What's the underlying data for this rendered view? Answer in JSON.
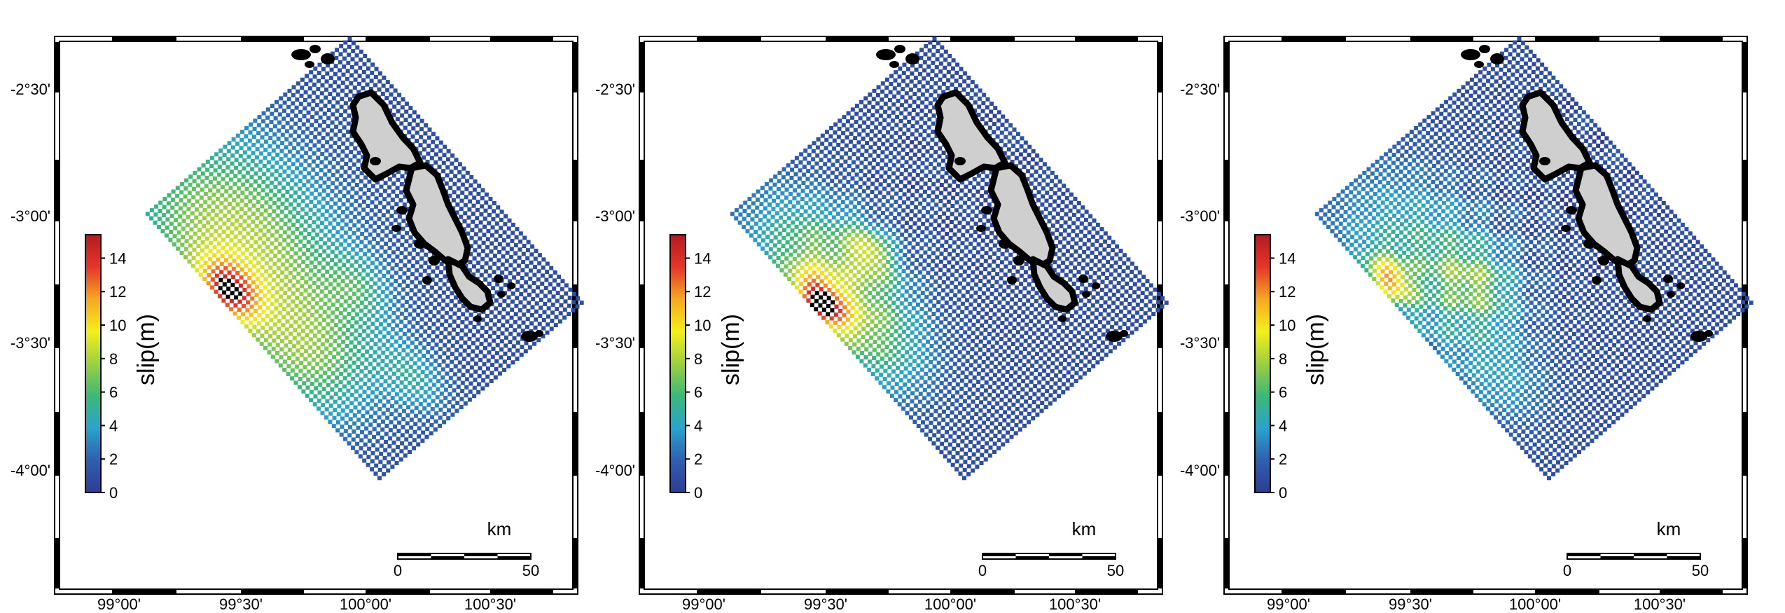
{
  "figure": {
    "panels": [
      {
        "id": "panel-1",
        "pattern": "broad"
      },
      {
        "id": "panel-2",
        "pattern": "narrow"
      },
      {
        "id": "panel-3",
        "pattern": "patchy"
      }
    ],
    "lon_ticks": [
      "99°00'",
      "99°30'",
      "100°00'",
      "100°30'"
    ],
    "lat_ticks": [
      "-2°30'",
      "-3°00'",
      "-3°30'",
      "-4°00'"
    ],
    "colorbar": {
      "label": "slip(m)",
      "ticks": [
        "0",
        "2",
        "4",
        "6",
        "8",
        "10",
        "12",
        "14"
      ],
      "colors": [
        "#2d3c93",
        "#2f5fb0",
        "#2aa3cc",
        "#3cb878",
        "#9dd03f",
        "#f4ef1c",
        "#f6a821",
        "#e5352a",
        "#b21b22"
      ]
    },
    "scalebar": {
      "unit": "km",
      "ticks": [
        "0",
        "50"
      ]
    },
    "colors": {
      "land": "#cfcfcf",
      "coast": "#000000",
      "frame": "#000000",
      "saturated": "#000000"
    }
  }
}
